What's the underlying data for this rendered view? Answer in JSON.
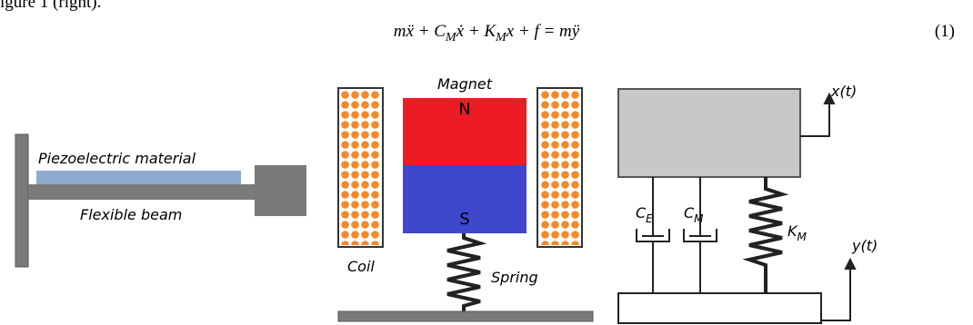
{
  "caption_fragment": "igure 1 (right).",
  "equation": {
    "parts": [
      "mẍ + C",
      "M",
      "ẋ + K",
      "M",
      "x + f = mÿ"
    ],
    "number": "(1)"
  },
  "piezo": {
    "material": "Piezoelectric material",
    "beam": "Flexible beam"
  },
  "electromagnetic": {
    "magnet": "Magnet",
    "north": "N",
    "south": "S",
    "coil": "Coil",
    "spring": "Spring"
  },
  "model": {
    "x": "x(t)",
    "y": "y(t)",
    "damper_e": {
      "symbol": "C",
      "subscript": "E"
    },
    "damper_m": {
      "symbol": "C",
      "subscript": "M"
    },
    "spring": {
      "symbol": "K",
      "subscript": "M"
    }
  }
}
